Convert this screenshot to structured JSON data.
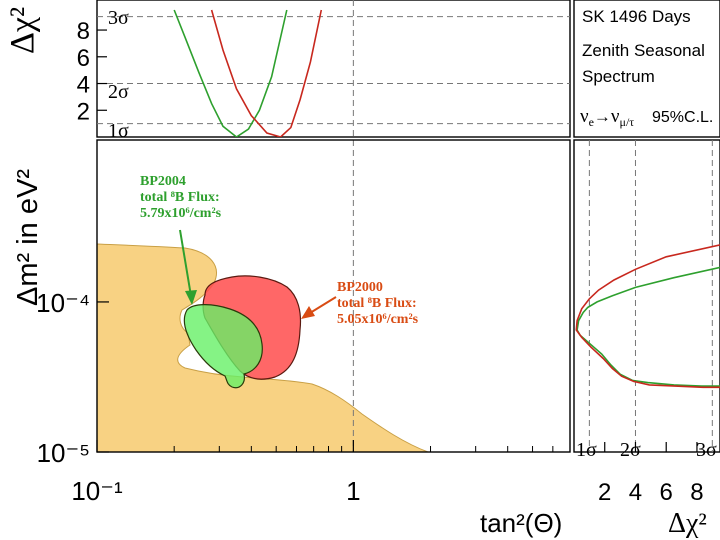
{
  "colors": {
    "green": "#2ea02e",
    "red": "#c8281e",
    "orange_text": "#d94c14",
    "green_fill": "#66f066",
    "red_fill": "#ff4c4c",
    "yellow_fill": "#f5c35a",
    "grid": "#777777"
  },
  "chart_data": [
    {
      "id": "main",
      "type": "contour",
      "xlabel": "tan²(Θ)",
      "ylabel": "Δm² in eV²",
      "xscale": "log",
      "yscale": "log",
      "xlim": [
        0.1,
        7
      ],
      "ylim": [
        1e-05,
        0.0012
      ],
      "xticks": [
        {
          "value": 0.1,
          "label": "10⁻¹"
        },
        {
          "value": 1,
          "label": "1"
        }
      ],
      "yticks": [
        {
          "value": 1e-05,
          "label": "10⁻⁵"
        },
        {
          "value": 0.0001,
          "label": "10⁻⁴"
        }
      ],
      "regions": [
        {
          "name": "SK excluded region (95% C.L.)",
          "color": "#f5c35a"
        },
        {
          "name": "BP2000 allowed region",
          "color": "#ff4c4c"
        },
        {
          "name": "BP2004 allowed region",
          "color": "#66f066"
        }
      ],
      "annotations": [
        {
          "lines": [
            "BP2004",
            "total ⁸B Flux:",
            "5.79x10⁶/cm²s"
          ],
          "color": "#2ea02e"
        },
        {
          "lines": [
            "BP2000",
            "total ⁸B Flux:",
            "5.05x10⁶/cm²s"
          ],
          "color": "#d94c14"
        }
      ]
    },
    {
      "id": "top",
      "type": "line",
      "ylabel": "Δχ²",
      "yticks": [
        2,
        4,
        6,
        8
      ],
      "ylim": [
        0,
        9.5
      ],
      "sigma_levels": [
        {
          "label": "1σ",
          "value": 1
        },
        {
          "label": "2σ",
          "value": 4
        },
        {
          "label": "3σ",
          "value": 9
        }
      ],
      "series": [
        {
          "name": "BP2004",
          "color": "#2ea02e",
          "x": [
            0.2,
            0.22,
            0.25,
            0.28,
            0.31,
            0.35,
            0.39,
            0.43,
            0.48,
            0.55
          ],
          "y": [
            9.5,
            7.5,
            4.8,
            2.5,
            0.8,
            0.0,
            0.6,
            2.0,
            4.5,
            9.5
          ]
        },
        {
          "name": "BP2000",
          "color": "#c8281e",
          "x": [
            0.28,
            0.31,
            0.35,
            0.4,
            0.46,
            0.52,
            0.57,
            0.62,
            0.68,
            0.75
          ],
          "y": [
            9.5,
            6.5,
            3.6,
            1.6,
            0.3,
            0.0,
            0.7,
            2.8,
            5.6,
            9.5
          ]
        }
      ]
    },
    {
      "id": "side",
      "type": "line",
      "xlabel": "Δχ²",
      "xticks": [
        2,
        4,
        6,
        8
      ],
      "xlim": [
        0,
        9.5
      ],
      "sigma_levels": [
        {
          "label": "1σ",
          "value": 1
        },
        {
          "label": "2σ",
          "value": 4
        },
        {
          "label": "3σ",
          "value": 9
        }
      ],
      "series": [
        {
          "name": "BP2004",
          "color": "#2ea02e",
          "x": [
            9.5,
            6.5,
            4.0,
            2.5,
            1.5,
            0.9,
            0.6,
            0.3,
            0.2,
            0.4,
            1.0,
            1.8,
            2.4,
            3.0,
            3.8,
            4.8,
            6.5,
            8.3,
            9.5
          ],
          "y": [
            0.00017,
            0.000145,
            0.000125,
            0.00011,
            0.0001,
            9.2e-05,
            8.5e-05,
            7.5e-05,
            6.5e-05,
            6e-05,
            5.3e-05,
            4.5e-05,
            3.8e-05,
            3.3e-05,
            3e-05,
            2.9e-05,
            2.8e-05,
            2.75e-05,
            2.75e-05
          ]
        },
        {
          "name": "BP2000",
          "color": "#c8281e",
          "x": [
            9.5,
            6.0,
            4.0,
            2.6,
            1.6,
            1.0,
            0.5,
            0.2,
            0.15,
            0.5,
            1.1,
            1.9,
            2.5,
            3.1,
            3.9,
            4.9,
            6.6,
            8.4,
            9.5
          ],
          "y": [
            0.00024,
            0.0002,
            0.000165,
            0.00014,
            0.00012,
            0.000105,
            9e-05,
            7.5e-05,
            6.5e-05,
            5.8e-05,
            5e-05,
            4.2e-05,
            3.6e-05,
            3.2e-05,
            2.95e-05,
            2.8e-05,
            2.75e-05,
            2.7e-05,
            2.7e-05
          ]
        }
      ]
    }
  ],
  "info_panel": {
    "title": "SK 1496 Days",
    "line1": "Zenith Seasonal",
    "line2": "Spectrum",
    "oscillation_nu_e": "ν",
    "oscillation_sub_e": "e",
    "oscillation_arrow": "→",
    "oscillation_nu_mu": "ν",
    "oscillation_sub_mu": "μ/τ",
    "confidence": "95%C.L."
  }
}
